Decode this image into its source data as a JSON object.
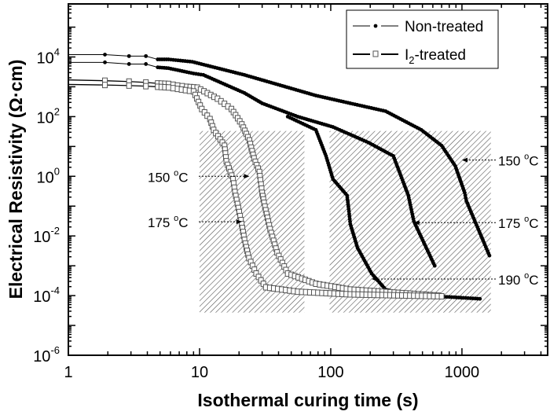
{
  "chart_data": {
    "type": "scatter",
    "xlabel": "Isothermal curing time (s)",
    "ylabel": "Electrical Resistivity (Ω·cm)",
    "xscale": "log",
    "yscale": "log",
    "xlim": [
      1,
      4500
    ],
    "ylim": [
      1e-06,
      600000
    ],
    "grid": false,
    "legend_position": "top-right",
    "x_tick_labels": [
      "1",
      "10",
      "100",
      "1000"
    ],
    "y_tick_labels": [
      {
        "base": "10",
        "exp": "4"
      },
      {
        "base": "10",
        "exp": "2"
      },
      {
        "base": "10",
        "exp": "0"
      },
      {
        "base": "10",
        "exp": "-2"
      },
      {
        "base": "10",
        "exp": "-4"
      },
      {
        "base": "10",
        "exp": "-6"
      }
    ],
    "legend": [
      {
        "label": "Non-treated",
        "marker": "filled-circle"
      },
      {
        "label_main": "I",
        "label_sub": "2",
        "label_rest": "-treated",
        "marker": "open-square"
      }
    ],
    "series": [
      {
        "group": "Non-treated",
        "temperature": "150 °C",
        "marker": "filled-circle",
        "color": "#000000",
        "points": [
          [
            1,
            12000
          ],
          [
            1.9,
            12000
          ],
          [
            2.9,
            10700
          ],
          [
            3.9,
            10700
          ],
          [
            4.8,
            8300
          ],
          [
            5.8,
            8300
          ],
          [
            8.8,
            6900
          ],
          [
            22,
            2500
          ],
          [
            77,
            510
          ],
          [
            141,
            280
          ],
          [
            262,
            152
          ],
          [
            490,
            36
          ],
          [
            700,
            10.7
          ],
          [
            890,
            2.2
          ],
          [
            1050,
            0.28
          ],
          [
            1080,
            0.15
          ],
          [
            1620,
            0.0022
          ]
        ]
      },
      {
        "group": "Non-treated",
        "temperature": "175 °C",
        "marker": "filled-circle",
        "color": "#000000",
        "points": [
          [
            1,
            6600
          ],
          [
            1.9,
            6600
          ],
          [
            2.9,
            5800
          ],
          [
            3.9,
            5800
          ],
          [
            4.8,
            4500
          ],
          [
            5.8,
            4200
          ],
          [
            9,
            2800
          ],
          [
            10.7,
            2500
          ],
          [
            22,
            620
          ],
          [
            30,
            280
          ],
          [
            56,
            100
          ],
          [
            104,
            45
          ],
          [
            194,
            13.5
          ],
          [
            300,
            4.8
          ],
          [
            390,
            0.23
          ],
          [
            430,
            0.031
          ],
          [
            620,
            0.001
          ]
        ]
      },
      {
        "group": "Non-treated",
        "temperature": "190 °C",
        "marker": "filled-circle",
        "color": "#000000",
        "points": [
          [
            47,
            100
          ],
          [
            77,
            36
          ],
          [
            92,
            4.8
          ],
          [
            104,
            0.8
          ],
          [
            133,
            0.23
          ],
          [
            137,
            0.08
          ],
          [
            141,
            0.025
          ],
          [
            160,
            0.004
          ],
          [
            205,
            0.00055
          ],
          [
            262,
            0.00016
          ],
          [
            400,
            0.0001
          ],
          [
            800,
            9e-05
          ],
          [
            1370,
            7.8e-05
          ]
        ]
      },
      {
        "group": "I2-treated",
        "temperature": "150 °C",
        "marker": "open-square",
        "color": "#555555",
        "points": [
          [
            1,
            1700
          ],
          [
            1.9,
            1600
          ],
          [
            2.9,
            1500
          ],
          [
            3.9,
            1400
          ],
          [
            4.8,
            1300
          ],
          [
            5.8,
            1250
          ],
          [
            6.8,
            1100
          ],
          [
            8,
            1000
          ],
          [
            9.6,
            940
          ],
          [
            13.7,
            400
          ],
          [
            17.5,
            180
          ],
          [
            21,
            55
          ],
          [
            24,
            16
          ],
          [
            26,
            4
          ],
          [
            28.6,
            1.4
          ],
          [
            30,
            0.28
          ],
          [
            31,
            0.13
          ],
          [
            34.5,
            0.017
          ],
          [
            39,
            0.0028
          ],
          [
            47,
            0.00055
          ],
          [
            77,
            0.00025
          ],
          [
            141,
            0.00016
          ],
          [
            660,
            0.0001
          ]
        ]
      },
      {
        "group": "I2-treated",
        "temperature": "175 °C",
        "marker": "open-square",
        "color": "#555555",
        "points": [
          [
            1,
            1200
          ],
          [
            1.9,
            1150
          ],
          [
            2.9,
            1100
          ],
          [
            3.9,
            1050
          ],
          [
            4.8,
            1000
          ],
          [
            5.8,
            950
          ],
          [
            6.8,
            850
          ],
          [
            9,
            700
          ],
          [
            10.4,
            180
          ],
          [
            12,
            83
          ],
          [
            12.8,
            36
          ],
          [
            15.5,
            10.6
          ],
          [
            16,
            3.2
          ],
          [
            18,
            0.8
          ],
          [
            18.6,
            0.3
          ],
          [
            20.7,
            0.034
          ],
          [
            22,
            0.0074
          ],
          [
            23.8,
            0.0018
          ],
          [
            27,
            0.00055
          ],
          [
            32,
            0.00019
          ],
          [
            56,
            0.000135
          ],
          [
            141,
            0.00011
          ],
          [
            700,
            9.5e-05
          ]
        ]
      }
    ],
    "shaded_regions": [
      {
        "x": [
          10,
          63
        ],
        "y": [
          2.7e-05,
          33
        ],
        "pattern": "diagonal-hatch"
      },
      {
        "x": [
          98,
          1660
        ],
        "y": [
          2.7e-05,
          33
        ],
        "pattern": "diagonal-hatch"
      }
    ],
    "annotations": [
      {
        "text_main": "150 ",
        "text_sup": "o",
        "text_unit": "C",
        "target": [
          24,
          1
        ],
        "side": "left"
      },
      {
        "text_main": "175 ",
        "text_sup": "o",
        "text_unit": "C",
        "target": [
          21,
          0.03
        ],
        "side": "left"
      },
      {
        "text_main": "150 ",
        "text_sup": "o",
        "text_unit": "C",
        "target": [
          1000,
          3.5
        ],
        "side": "right"
      },
      {
        "text_main": "175 ",
        "text_sup": "o",
        "text_unit": "C",
        "target": [
          430,
          0.028
        ],
        "side": "right"
      },
      {
        "text_main": "190 ",
        "text_sup": "o",
        "text_unit": "C",
        "target": [
          205,
          0.00036
        ],
        "side": "right"
      }
    ]
  }
}
